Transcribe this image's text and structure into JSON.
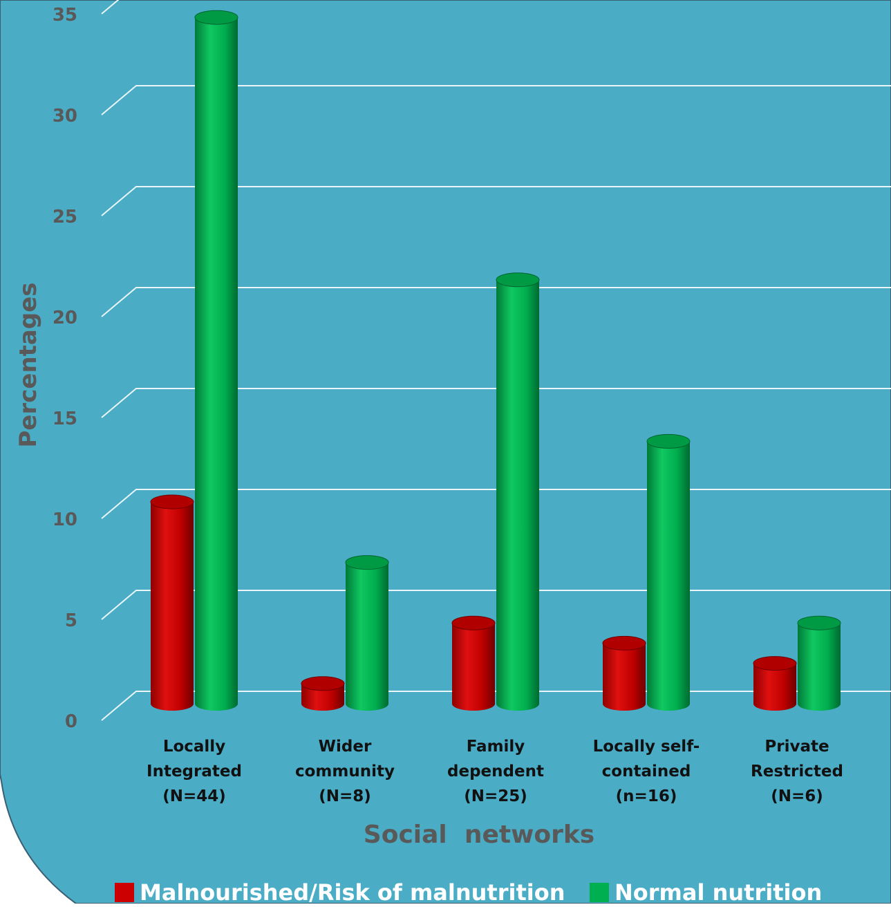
{
  "chart_data": {
    "type": "bar",
    "subtype": "3d-cylinder",
    "title": "",
    "xlabel": "Social  networks",
    "ylabel": "Percentages",
    "ylim": [
      0,
      35
    ],
    "yticks": [
      "0",
      "5",
      "10",
      "15",
      "20",
      "25",
      "30",
      "35"
    ],
    "grid": true,
    "legend_position": "bottom",
    "categories": [
      [
        "Locally",
        "Integrated",
        "(N=44)"
      ],
      [
        "Wider",
        "community",
        "(N=8)"
      ],
      [
        "Family",
        "dependent",
        "(N=25)"
      ],
      [
        "Locally self-",
        "contained",
        "(n=16)"
      ],
      [
        "Private",
        "Restricted",
        "(N=6)"
      ]
    ],
    "series": [
      {
        "name": "Malnourished/Risk of malnutrition",
        "color": "#cc0000",
        "values": [
          10,
          1,
          4,
          3,
          2
        ]
      },
      {
        "name": "Normal nutrition",
        "color": "#00b050",
        "values": [
          34,
          7,
          21,
          13,
          4
        ]
      }
    ],
    "colors": {
      "background": "#4bacc6",
      "border": "#3b5f72",
      "gridline": "#eaf6fa",
      "text": "#595959"
    }
  }
}
